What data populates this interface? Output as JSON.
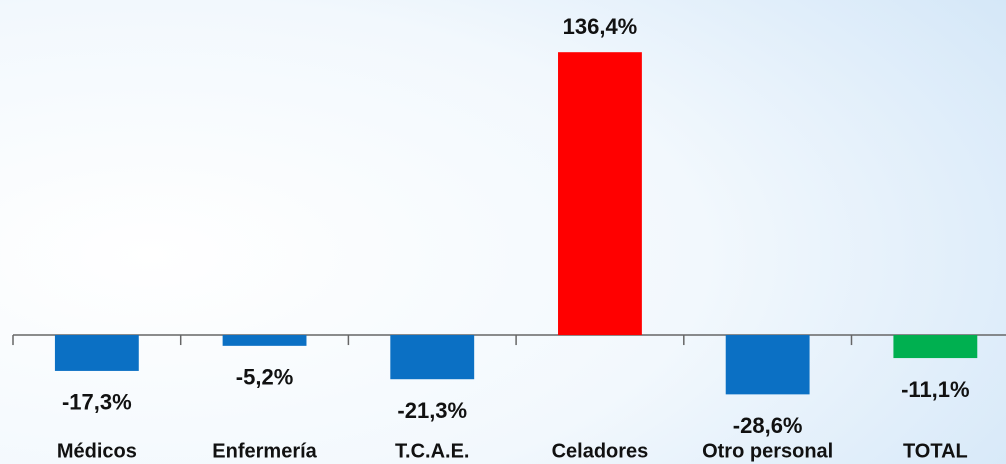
{
  "chart_data": {
    "type": "bar",
    "categories": [
      "Médicos",
      "Enfermería",
      "T.C.A.E.",
      "Celadores",
      "Otro personal",
      "TOTAL"
    ],
    "values": [
      -17.3,
      -5.2,
      -21.3,
      136.4,
      -28.6,
      -11.1
    ],
    "value_labels": [
      "-17,3%",
      "-5,2%",
      "-21,3%",
      "136,4%",
      "-28,6%",
      "-11,1%"
    ],
    "colors": [
      "#0b70c4",
      "#0b70c4",
      "#0b70c4",
      "#ff0000",
      "#0b70c4",
      "#00b050"
    ],
    "ylim": [
      -40,
      150
    ]
  }
}
